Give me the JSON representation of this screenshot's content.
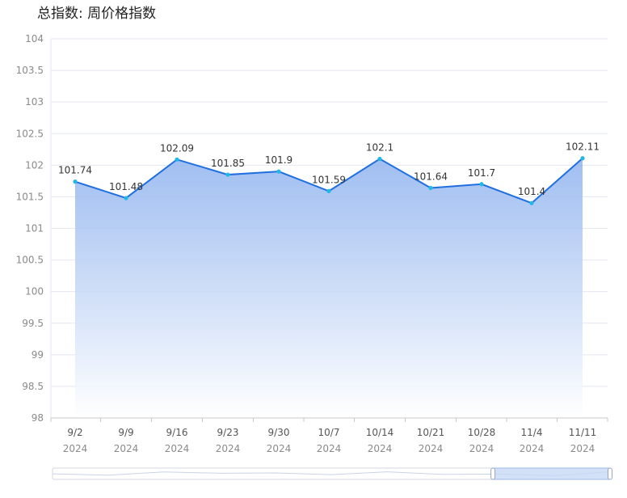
{
  "title": "总指数: 周价格指数",
  "chart_data": {
    "type": "area",
    "title": "总指数: 周价格指数",
    "categories": [
      "9/2",
      "9/9",
      "9/16",
      "9/23",
      "9/30",
      "10/7",
      "10/14",
      "10/21",
      "10/28",
      "11/4",
      "11/11"
    ],
    "category_years": [
      "2024",
      "2024",
      "2024",
      "2024",
      "2024",
      "2024",
      "2024",
      "2024",
      "2024",
      "2024",
      "2024"
    ],
    "series": [
      {
        "values": [
          101.74,
          101.48,
          102.09,
          101.85,
          101.9,
          101.59,
          102.1,
          101.64,
          101.7,
          101.4,
          102.11
        ]
      }
    ],
    "value_labels": [
      "101.74",
      "101.48",
      "102.09",
      "101.85",
      "101.9",
      "101.59",
      "102.1",
      "101.64",
      "101.7",
      "101.4",
      "102.11"
    ],
    "ylim": [
      98,
      104
    ],
    "yticks": [
      "98",
      "98.5",
      "99",
      "99.5",
      "100",
      "100.5",
      "101",
      "101.5",
      "102",
      "102.5",
      "103",
      "103.5",
      "104"
    ],
    "grid": true,
    "data_zoom": {
      "start_fraction": 0.79,
      "end_fraction": 1.0
    },
    "colors": {
      "line": "#1f6fe0",
      "point": "#22b8e6",
      "area_top": "#8fb3ee",
      "grid": "#e4e7f0",
      "axis": "#c8c8c8"
    }
  }
}
